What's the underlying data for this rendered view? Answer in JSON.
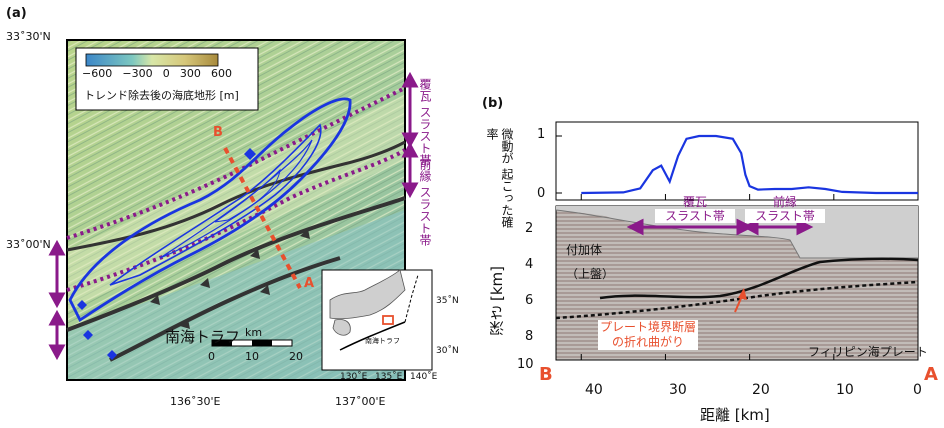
{
  "panel_a": {
    "label": "(a)",
    "lat_ticks": [
      "33˚30'N",
      "33˚00'N"
    ],
    "lon_ticks": [
      "136˚30'E",
      "137˚00'E"
    ],
    "colorbar": {
      "ticks": [
        "−600",
        "−300",
        "0",
        "300",
        "600"
      ],
      "caption": "トレンド除去後の海底地形 [m]"
    },
    "profile_end_b": "B",
    "profile_end_a": "A",
    "trough_label": "南海トラフ",
    "scale": {
      "unit": "km",
      "ticks": [
        "0",
        "10",
        "20"
      ]
    },
    "zone_labels": {
      "kawara_line1": "覆瓦",
      "kawara_line2": "スラスト帯",
      "frontal_line1": "前縁",
      "frontal_line2": "スラスト帯"
    },
    "inset": {
      "lat_ticks": [
        "35˚N",
        "30˚N"
      ],
      "lon_ticks": [
        "130˚E",
        "135˚E",
        "140˚E"
      ],
      "trough_label": "南海トラフ"
    }
  },
  "panel_b": {
    "label": "(b)",
    "prob_ylabel_line1": "微動が",
    "prob_ylabel_line2": "起こった確率",
    "prob_ticks": [
      "1",
      "0"
    ],
    "depth_ylabel": "深さ [km]",
    "depth_ticks": [
      "2",
      "4",
      "6",
      "8",
      "10"
    ],
    "dist_ticks": [
      "40",
      "30",
      "20",
      "10",
      "0"
    ],
    "xlabel": "距離 [km]",
    "end_b": "B",
    "end_a": "A",
    "zone_kawara_line1": "覆瓦",
    "zone_kawara_line2": "スラスト帯",
    "zone_frontal_line1": "前縁",
    "zone_frontal_line2": "スラスト帯",
    "accretion_line1": "付加体",
    "accretion_line2": "（上盤）",
    "fault_line1": "プレート境界断層",
    "fault_line2": "の折れ曲がり",
    "plate_label": "フィリピン海プレート"
  },
  "chart_data": {
    "type": "line",
    "title": "",
    "xlabel": "距離 [km]",
    "ylabel": "微動が起こった確率",
    "xlim": [
      43,
      0
    ],
    "ylim": [
      0,
      1
    ],
    "x": [
      40,
      35,
      33,
      31.5,
      30.5,
      29.5,
      28.5,
      27.5,
      26,
      24,
      22,
      21,
      20.5,
      20,
      19,
      17,
      15,
      13,
      11,
      9,
      5,
      0
    ],
    "y": [
      0,
      0.01,
      0.08,
      0.4,
      0.48,
      0.2,
      0.65,
      0.95,
      1.0,
      1.0,
      0.95,
      0.7,
      0.32,
      0.12,
      0.06,
      0.07,
      0.07,
      0.1,
      0.07,
      0.02,
      0,
      0
    ]
  },
  "colors": {
    "accent_purple": "#8a1a8a",
    "profile_red": "#e8502e",
    "tremor_blue": "#1a35e0"
  }
}
